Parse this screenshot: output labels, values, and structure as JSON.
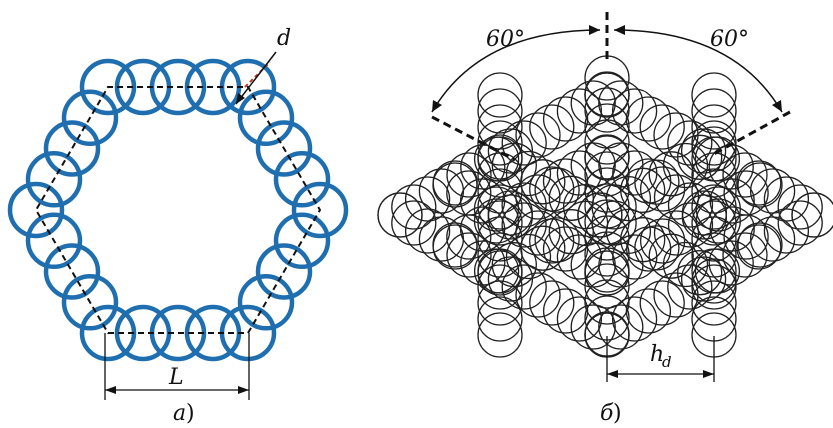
{
  "panel_a": {
    "label_d": "d",
    "label_L": "L",
    "caption_letter": "a",
    "caption_paren": ")",
    "ring_color": "#1f6fb0",
    "marker_color": "#c0392b"
  },
  "panel_b": {
    "angle_left": "60°",
    "angle_right": "60°",
    "label_h": "h",
    "label_h_sub": "d",
    "caption_letter": "б",
    "caption_paren": ")",
    "circle_color": "#222222"
  }
}
